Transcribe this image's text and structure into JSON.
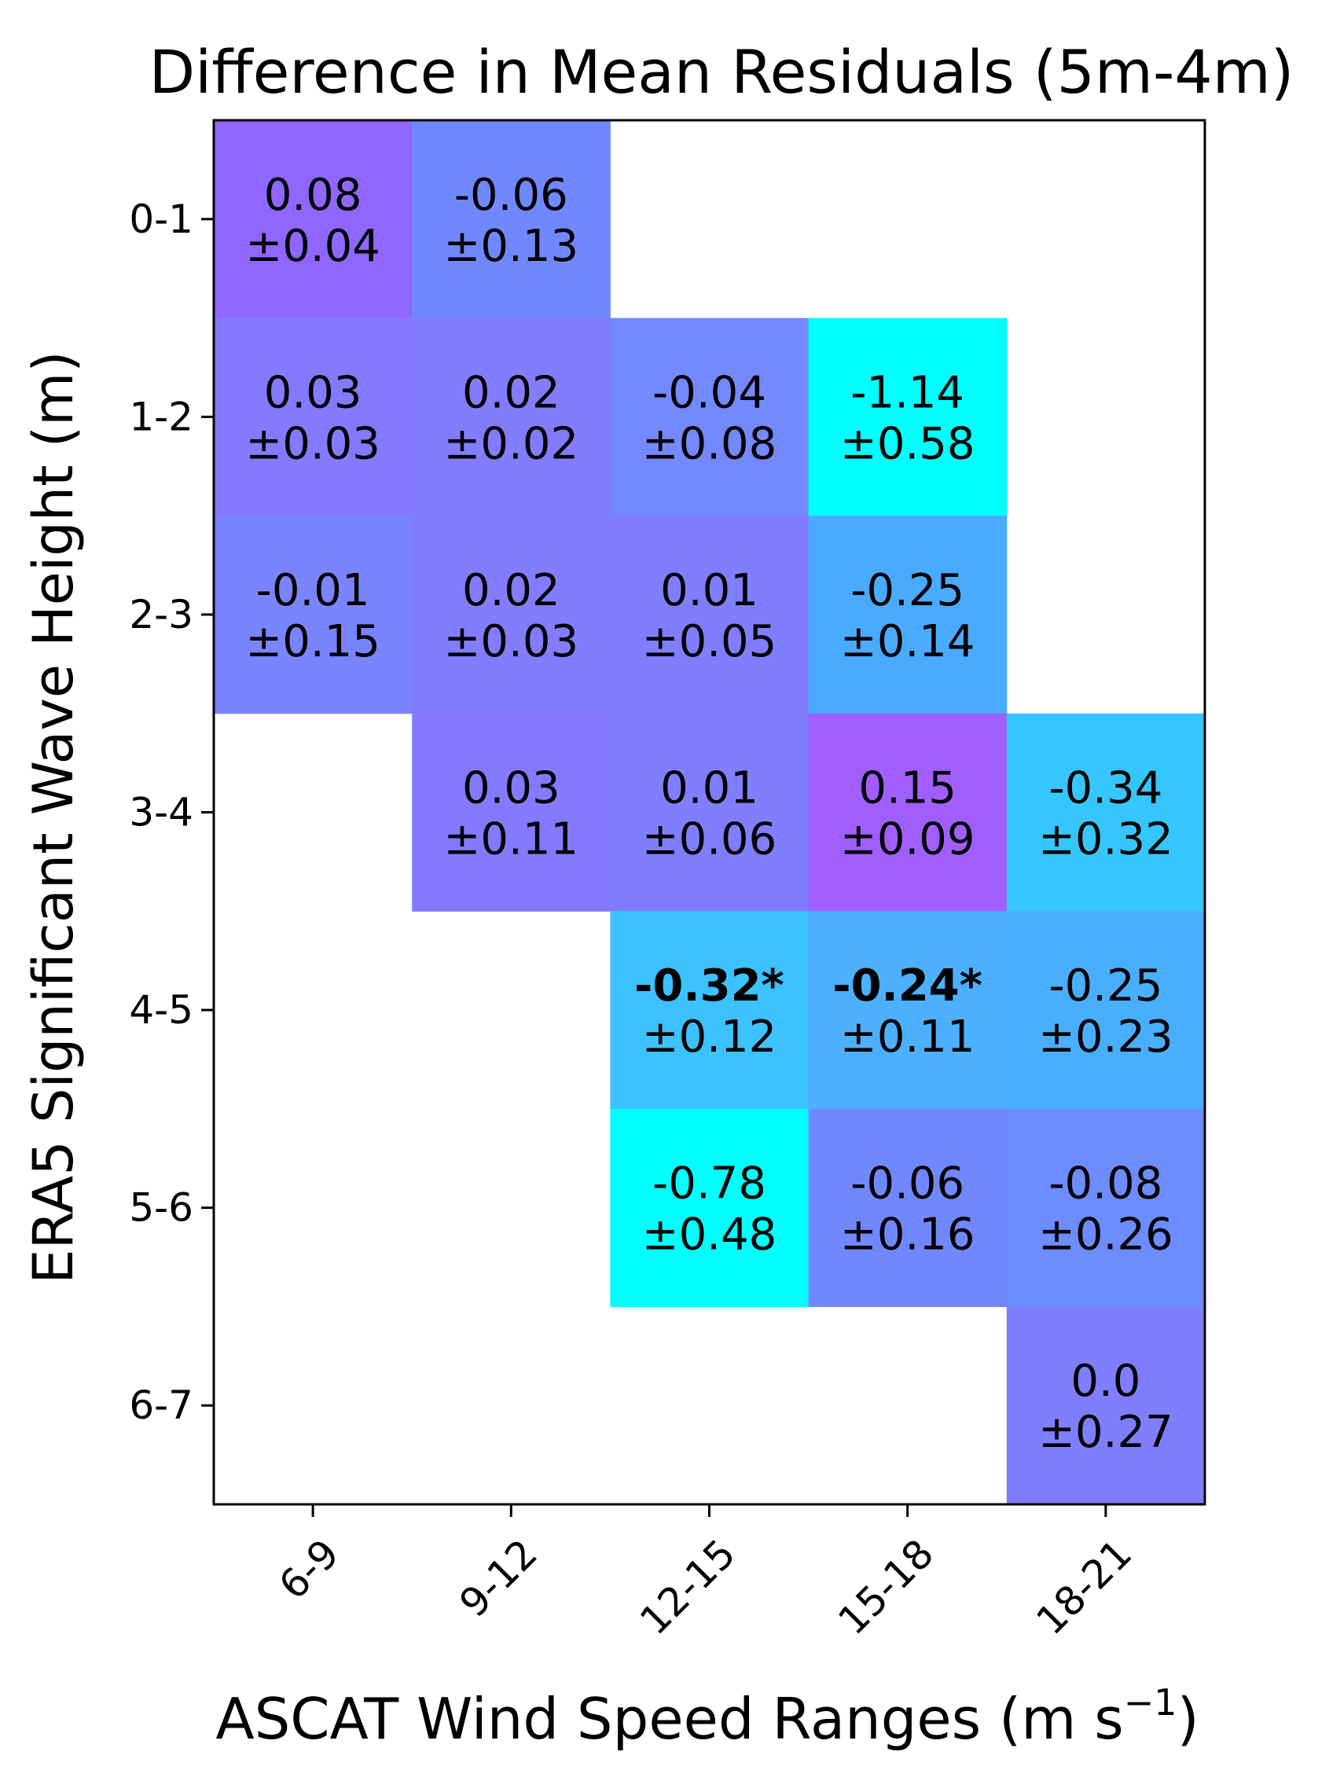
{
  "chart_data": {
    "type": "heatmap",
    "title": "Difference in Mean Residuals (5m-4m)",
    "xlabel": "ASCAT Wind Speed Ranges (m s",
    "xlabel_sup": "−1",
    "xlabel_close": ")",
    "ylabel": "ERA5 Significant Wave Height (m)",
    "x_categories": [
      "6-9",
      "9-12",
      "12-15",
      "15-18",
      "18-21"
    ],
    "y_categories": [
      "0-1",
      "1-2",
      "2-3",
      "3-4",
      "4-5",
      "5-6",
      "6-7"
    ],
    "cells": [
      {
        "row": 0,
        "col": 0,
        "value": "0.08",
        "err": "±0.04",
        "color": "#8f66ff",
        "bold": false
      },
      {
        "row": 0,
        "col": 1,
        "value": "-0.06",
        "err": "±0.13",
        "color": "#7088ff",
        "bold": false
      },
      {
        "row": 1,
        "col": 0,
        "value": "0.03",
        "err": "±0.03",
        "color": "#847aff",
        "bold": false
      },
      {
        "row": 1,
        "col": 1,
        "value": "0.02",
        "err": "±0.02",
        "color": "#827cff",
        "bold": false
      },
      {
        "row": 1,
        "col": 2,
        "value": "-0.04",
        "err": "±0.08",
        "color": "#7488ff",
        "bold": false
      },
      {
        "row": 1,
        "col": 3,
        "value": "-1.14",
        "err": "±0.58",
        "color": "#00ffff",
        "bold": false
      },
      {
        "row": 2,
        "col": 0,
        "value": "-0.01",
        "err": "±0.15",
        "color": "#7a84ff",
        "bold": false
      },
      {
        "row": 2,
        "col": 1,
        "value": "0.02",
        "err": "±0.03",
        "color": "#827cff",
        "bold": false
      },
      {
        "row": 2,
        "col": 2,
        "value": "0.01",
        "err": "±0.05",
        "color": "#807eff",
        "bold": false
      },
      {
        "row": 2,
        "col": 3,
        "value": "-0.25",
        "err": "±0.14",
        "color": "#4aaaff",
        "bold": false
      },
      {
        "row": 3,
        "col": 1,
        "value": "0.03",
        "err": "±0.11",
        "color": "#847aff",
        "bold": false
      },
      {
        "row": 3,
        "col": 2,
        "value": "0.01",
        "err": "±0.06",
        "color": "#807eff",
        "bold": false
      },
      {
        "row": 3,
        "col": 3,
        "value": "0.15",
        "err": "±0.09",
        "color": "#a05eff",
        "bold": false
      },
      {
        "row": 3,
        "col": 4,
        "value": "-0.34",
        "err": "±0.32",
        "color": "#36c6ff",
        "bold": false
      },
      {
        "row": 4,
        "col": 2,
        "value": "-0.32*",
        "err": "±0.12",
        "color": "#3cc2ff",
        "bold": true
      },
      {
        "row": 4,
        "col": 3,
        "value": "-0.24*",
        "err": "±0.11",
        "color": "#4cb0ff",
        "bold": true
      },
      {
        "row": 4,
        "col": 4,
        "value": "-0.25",
        "err": "±0.23",
        "color": "#4aaeff",
        "bold": false
      },
      {
        "row": 5,
        "col": 2,
        "value": "-0.78",
        "err": "±0.48",
        "color": "#00ffff",
        "bold": false
      },
      {
        "row": 5,
        "col": 3,
        "value": "-0.06",
        "err": "±0.16",
        "color": "#7088ff",
        "bold": false
      },
      {
        "row": 5,
        "col": 4,
        "value": "-0.08",
        "err": "±0.26",
        "color": "#6c8cff",
        "bold": false
      },
      {
        "row": 6,
        "col": 4,
        "value": "0.0",
        "err": "±0.27",
        "color": "#7e7eff",
        "bold": false
      }
    ]
  }
}
